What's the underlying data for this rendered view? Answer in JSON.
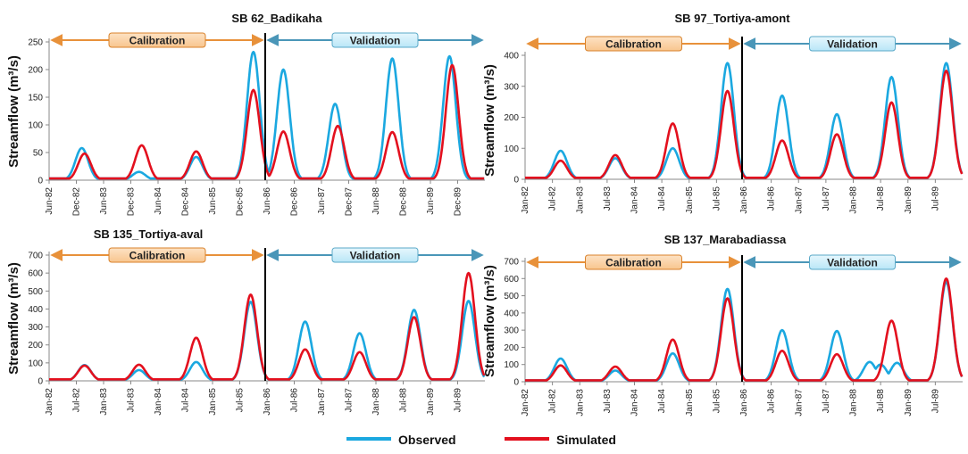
{
  "legend": {
    "observed": "Observed",
    "simulated": "Simulated"
  },
  "colors": {
    "observed": "#1ba8e0",
    "simulated": "#e3101e",
    "calibration_arrow": "#e8913a",
    "validation_arrow": "#4a96b8"
  },
  "chart_data": [
    {
      "type": "line",
      "title": "SB 62_Badikaha",
      "ylabel": "Streamflow (m³/s)",
      "ylim": [
        0,
        250
      ],
      "yticks": [
        0,
        50,
        100,
        150,
        200,
        250
      ],
      "xticks": [
        "Jun-82",
        "Dec-82",
        "Jun-83",
        "Dec-83",
        "Jun-84",
        "Dec-84",
        "Jun-85",
        "Dec-85",
        "Jun-86",
        "Dec-86",
        "Jun-87",
        "Dec-87",
        "Jun-88",
        "Dec-88",
        "Jun-89",
        "Dec-89"
      ],
      "calibration_label": "Calibration",
      "validation_label": "Validation",
      "split_index": 8,
      "series": [
        {
          "name": "Observed",
          "peaks": [
            [
              1.2,
              58
            ],
            [
              3.3,
              15
            ],
            [
              5.4,
              42
            ],
            [
              7.5,
              232
            ],
            [
              8.6,
              200
            ],
            [
              10.5,
              138
            ],
            [
              12.6,
              220
            ],
            [
              14.7,
              224
            ]
          ]
        },
        {
          "name": "Simulated",
          "peaks": [
            [
              1.3,
              48
            ],
            [
              3.4,
              63
            ],
            [
              5.4,
              52
            ],
            [
              7.5,
              163
            ],
            [
              8.6,
              88
            ],
            [
              10.6,
              98
            ],
            [
              12.6,
              87
            ],
            [
              14.8,
              208
            ]
          ]
        }
      ]
    },
    {
      "type": "line",
      "title": "SB 97_Tortiya-amont",
      "ylabel": "Streamflow (m³/s)",
      "ylim": [
        0,
        400
      ],
      "yticks": [
        0,
        100,
        200,
        300,
        400
      ],
      "xticks": [
        "Jan-82",
        "Jul-82",
        "Jan-83",
        "Jul-83",
        "Jan-84",
        "Jul-84",
        "Jan-85",
        "Jul-85",
        "Jan-86",
        "Jul-86",
        "Jan-87",
        "Jul-87",
        "Jan-88",
        "Jul-88",
        "Jan-89",
        "Jul-89"
      ],
      "calibration_label": "Calibration",
      "validation_label": "Validation",
      "split_index": 8,
      "series": [
        {
          "name": "Observed",
          "peaks": [
            [
              1.3,
              92
            ],
            [
              3.3,
              68
            ],
            [
              5.4,
              100
            ],
            [
              7.4,
              375
            ],
            [
              9.4,
              270
            ],
            [
              11.4,
              210
            ],
            [
              13.4,
              330
            ],
            [
              15.4,
              375
            ]
          ]
        },
        {
          "name": "Simulated",
          "peaks": [
            [
              1.3,
              60
            ],
            [
              3.3,
              78
            ],
            [
              5.4,
              180
            ],
            [
              7.4,
              285
            ],
            [
              9.4,
              125
            ],
            [
              11.4,
              145
            ],
            [
              13.4,
              248
            ],
            [
              15.4,
              350
            ]
          ]
        }
      ]
    },
    {
      "type": "line",
      "title": "SB 135_Tortiya-aval",
      "ylabel": "Streamflow (m³/s)",
      "ylim": [
        0,
        700
      ],
      "yticks": [
        0,
        100,
        200,
        300,
        400,
        500,
        600,
        700
      ],
      "xticks": [
        "Jan-82",
        "Jul-82",
        "Jan-83",
        "Jul-83",
        "Jan-84",
        "Jul-84",
        "Jan-85",
        "Jul-85",
        "Jan-86",
        "Jul-86",
        "Jan-87",
        "Jul-87",
        "Jan-88",
        "Jul-88",
        "Jan-89",
        "Jul-89"
      ],
      "calibration_label": "Calibration",
      "validation_label": "Validation",
      "split_index": 8,
      "series": [
        {
          "name": "Observed",
          "peaks": [
            [
              1.3,
              88
            ],
            [
              3.3,
              60
            ],
            [
              5.4,
              105
            ],
            [
              7.4,
              440
            ],
            [
              9.4,
              330
            ],
            [
              11.4,
              265
            ],
            [
              13.4,
              395
            ],
            [
              15.4,
              445
            ]
          ]
        },
        {
          "name": "Simulated",
          "peaks": [
            [
              1.3,
              85
            ],
            [
              3.3,
              90
            ],
            [
              5.4,
              240
            ],
            [
              7.4,
              480
            ],
            [
              9.4,
              175
            ],
            [
              11.4,
              160
            ],
            [
              13.4,
              355
            ],
            [
              15.4,
              600
            ]
          ]
        }
      ]
    },
    {
      "type": "line",
      "title": "SB 137_Marabadiassa",
      "ylabel": "Streamflow (m³/s)",
      "ylim": [
        0,
        700
      ],
      "yticks": [
        0,
        100,
        200,
        300,
        400,
        500,
        600,
        700
      ],
      "xticks": [
        "Jan-82",
        "Jul-82",
        "Jan-83",
        "Jul-83",
        "Jan-84",
        "Jul-84",
        "Jan-85",
        "Jul-85",
        "Jan-86",
        "Jul-86",
        "Jan-87",
        "Jul-87",
        "Jan-88",
        "Jul-88",
        "Jan-89",
        "Jul-89"
      ],
      "calibration_label": "Calibration",
      "validation_label": "Validation",
      "split_index": 8,
      "series": [
        {
          "name": "Observed",
          "peaks": [
            [
              1.3,
              135
            ],
            [
              3.3,
              65
            ],
            [
              5.4,
              165
            ],
            [
              7.4,
              540
            ],
            [
              9.4,
              300
            ],
            [
              11.4,
              295
            ],
            [
              12.6,
              115
            ],
            [
              13.0,
              100
            ],
            [
              13.6,
              110
            ],
            [
              15.4,
              580
            ]
          ]
        },
        {
          "name": "Simulated",
          "peaks": [
            [
              1.3,
              95
            ],
            [
              3.3,
              88
            ],
            [
              5.4,
              245
            ],
            [
              7.4,
              485
            ],
            [
              9.4,
              180
            ],
            [
              11.4,
              160
            ],
            [
              13.4,
              355
            ],
            [
              15.4,
              600
            ]
          ]
        }
      ]
    }
  ]
}
